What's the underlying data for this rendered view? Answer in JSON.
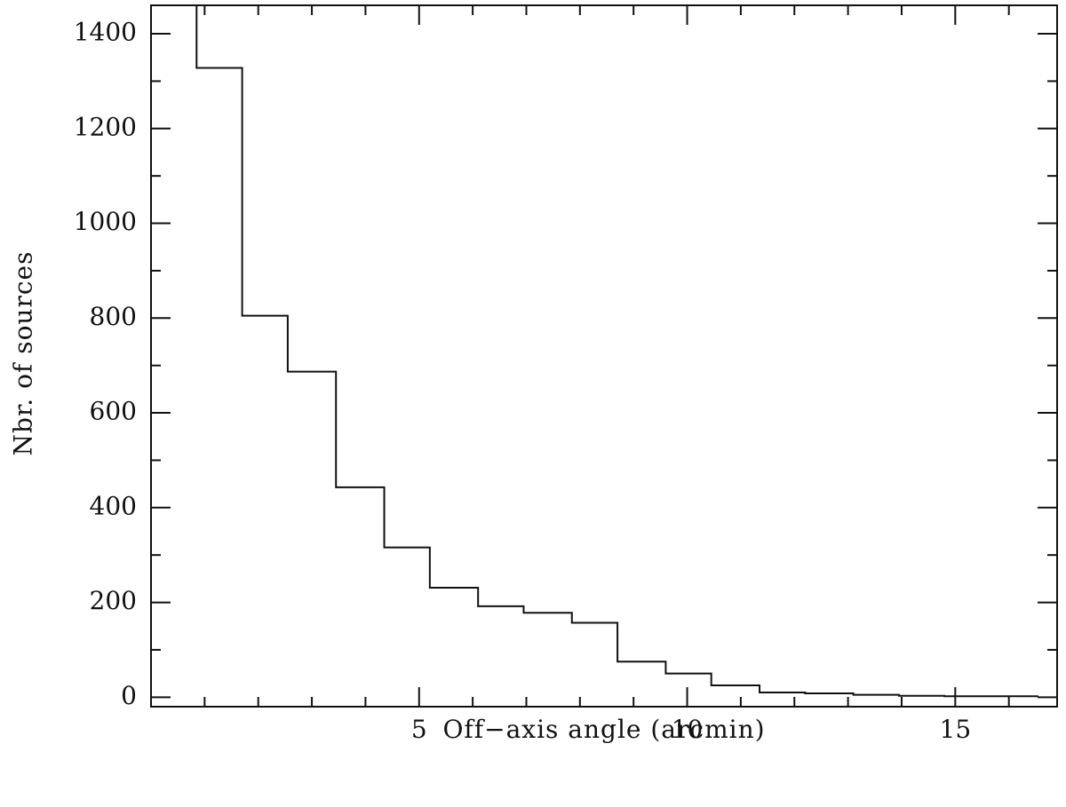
{
  "chart_data": {
    "type": "histogram",
    "xlabel": "Off−axis angle (arcmin)",
    "ylabel": "Nbr. of sources",
    "xlim": [
      0.0,
      16.9
    ],
    "ylim": [
      -20,
      1460
    ],
    "x_major_ticks": [
      5,
      10,
      15
    ],
    "x_tick_labels": [
      "5",
      "10",
      "15"
    ],
    "x_minor_step": 1,
    "y_major_ticks": [
      0,
      200,
      400,
      600,
      800,
      1000,
      1200,
      1400
    ],
    "y_tick_labels": [
      "0",
      "200",
      "400",
      "600",
      "800",
      "1000",
      "1200",
      "1400"
    ],
    "y_minor_step": 100,
    "bins": [
      {
        "x0": 0.85,
        "x1": 1.7,
        "value": 1328
      },
      {
        "x0": 1.7,
        "x1": 2.55,
        "value": 805
      },
      {
        "x0": 2.55,
        "x1": 3.45,
        "value": 687
      },
      {
        "x0": 3.45,
        "x1": 4.35,
        "value": 443
      },
      {
        "x0": 4.35,
        "x1": 5.2,
        "value": 316
      },
      {
        "x0": 5.2,
        "x1": 6.1,
        "value": 231
      },
      {
        "x0": 6.1,
        "x1": 6.95,
        "value": 192
      },
      {
        "x0": 6.95,
        "x1": 7.85,
        "value": 178
      },
      {
        "x0": 7.85,
        "x1": 8.7,
        "value": 157
      },
      {
        "x0": 8.7,
        "x1": 9.6,
        "value": 75
      },
      {
        "x0": 9.6,
        "x1": 10.45,
        "value": 50
      },
      {
        "x0": 10.45,
        "x1": 11.35,
        "value": 25
      },
      {
        "x0": 11.35,
        "x1": 12.2,
        "value": 10
      },
      {
        "x0": 12.2,
        "x1": 13.1,
        "value": 8
      },
      {
        "x0": 13.1,
        "x1": 13.95,
        "value": 5
      },
      {
        "x0": 13.95,
        "x1": 14.8,
        "value": 3
      },
      {
        "x0": 14.8,
        "x1": 15.7,
        "value": 2
      },
      {
        "x0": 15.7,
        "x1": 16.55,
        "value": 2
      }
    ],
    "first_edge_top": 1460
  }
}
